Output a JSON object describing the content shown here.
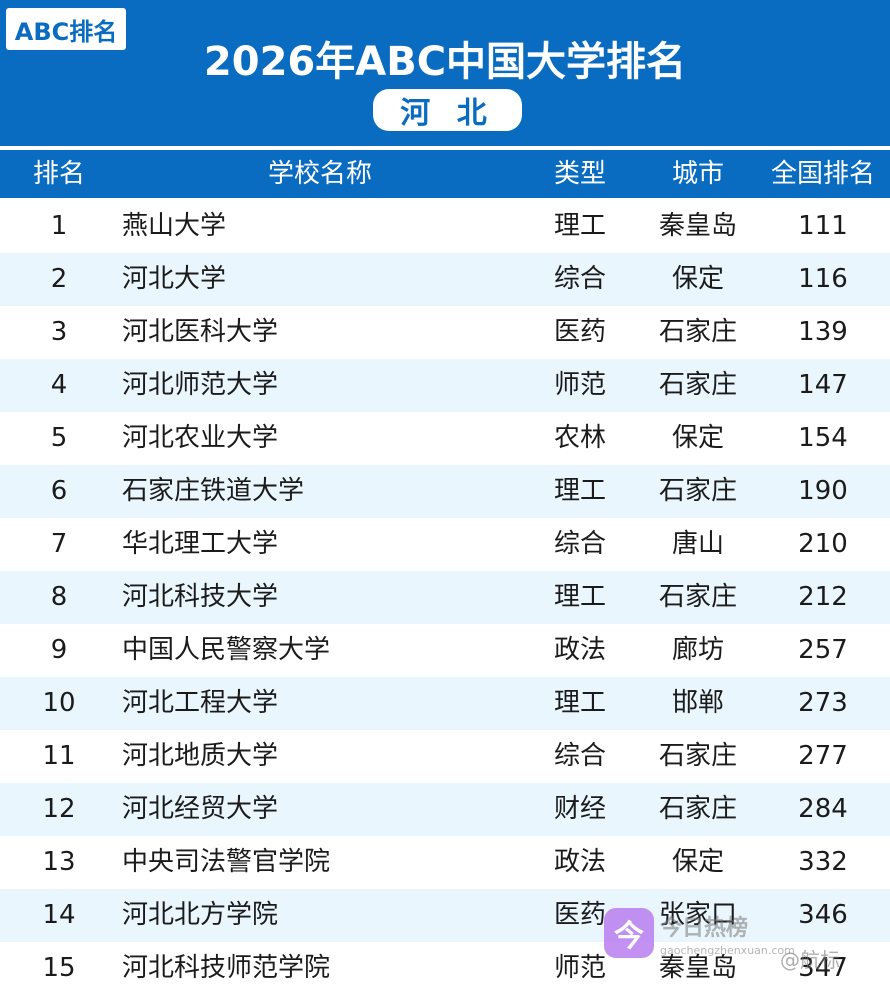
{
  "badge": "ABC排名",
  "title": "2026年ABC中国大学排名",
  "region": "河 北",
  "columns": {
    "rank": "排名",
    "name": "学校名称",
    "type": "类型",
    "city": "城市",
    "national_rank": "全国排名"
  },
  "rows": [
    {
      "rank": "1",
      "name": "燕山大学",
      "type": "理工",
      "city": "秦皇岛",
      "national_rank": "111"
    },
    {
      "rank": "2",
      "name": "河北大学",
      "type": "综合",
      "city": "保定",
      "national_rank": "116"
    },
    {
      "rank": "3",
      "name": "河北医科大学",
      "type": "医药",
      "city": "石家庄",
      "national_rank": "139"
    },
    {
      "rank": "4",
      "name": "河北师范大学",
      "type": "师范",
      "city": "石家庄",
      "national_rank": "147"
    },
    {
      "rank": "5",
      "name": "河北农业大学",
      "type": "农林",
      "city": "保定",
      "national_rank": "154"
    },
    {
      "rank": "6",
      "name": "石家庄铁道大学",
      "type": "理工",
      "city": "石家庄",
      "national_rank": "190"
    },
    {
      "rank": "7",
      "name": "华北理工大学",
      "type": "综合",
      "city": "唐山",
      "national_rank": "210"
    },
    {
      "rank": "8",
      "name": "河北科技大学",
      "type": "理工",
      "city": "石家庄",
      "national_rank": "212"
    },
    {
      "rank": "9",
      "name": "中国人民警察大学",
      "type": "政法",
      "city": "廊坊",
      "national_rank": "257"
    },
    {
      "rank": "10",
      "name": "河北工程大学",
      "type": "理工",
      "city": "邯郸",
      "national_rank": "273"
    },
    {
      "rank": "11",
      "name": "河北地质大学",
      "type": "综合",
      "city": "石家庄",
      "national_rank": "277"
    },
    {
      "rank": "12",
      "name": "河北经贸大学",
      "type": "财经",
      "city": "石家庄",
      "national_rank": "284"
    },
    {
      "rank": "13",
      "name": "中央司法警官学院",
      "type": "政法",
      "city": "保定",
      "national_rank": "332"
    },
    {
      "rank": "14",
      "name": "河北北方学院",
      "type": "医药",
      "city": "张家口",
      "national_rank": "346"
    },
    {
      "rank": "15",
      "name": "河北科技师范学院",
      "type": "师范",
      "city": "秦皇岛",
      "national_rank": "347"
    }
  ],
  "watermark": {
    "icon": "今",
    "brand": "今日热榜",
    "url": "gaochengzhenxuan.com",
    "weibo": "@航标"
  },
  "colors": {
    "header_blue": "#0a6cc1",
    "stripe": "#eaf6fd"
  }
}
